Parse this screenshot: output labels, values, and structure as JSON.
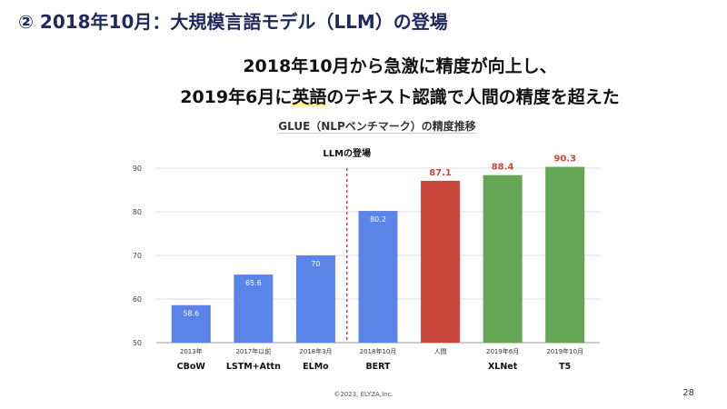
{
  "header": {
    "title": "② 2018年10月：大規模言語モデル（LLM）の登場"
  },
  "subtitle": {
    "line1": "2018年10月から急激に精度が向上し、",
    "line2_pre": "2019年6月に",
    "line2_hl": "英語",
    "line2_post": "のテキスト認識で人間の精度を超えた"
  },
  "chart_data": {
    "type": "bar",
    "title": "GLUE（NLPベンチマーク）の精度推移",
    "categories": [
      "2013年",
      "2017年以前",
      "2018年3月",
      "2018年10月",
      "人間",
      "2019年6月",
      "2019年10月"
    ],
    "model_names": [
      "CBoW",
      "LSTM+Attn",
      "ELMo",
      "BERT",
      "",
      "XLNet",
      "T5"
    ],
    "values": [
      58.6,
      65.6,
      70,
      80.2,
      87.1,
      88.4,
      90.3
    ],
    "data_labels": [
      "58.6",
      "65.6",
      "70",
      "80.2",
      "87.1",
      "88.4",
      "90.3"
    ],
    "colors": [
      "#5a84e8",
      "#5a84e8",
      "#5a84e8",
      "#5a84e8",
      "#c9473b",
      "#64a653",
      "#64a653"
    ],
    "ylim": [
      50,
      90
    ],
    "yticks": [
      50,
      60,
      70,
      80,
      90
    ],
    "grid": true,
    "annotation": {
      "text": "LLMの登場",
      "between": [
        "2018年3月",
        "2018年10月"
      ],
      "line_color": "#c9473b"
    }
  },
  "footer": {
    "copyright": "©2023, ELYZA,Inc.",
    "page": "28"
  }
}
